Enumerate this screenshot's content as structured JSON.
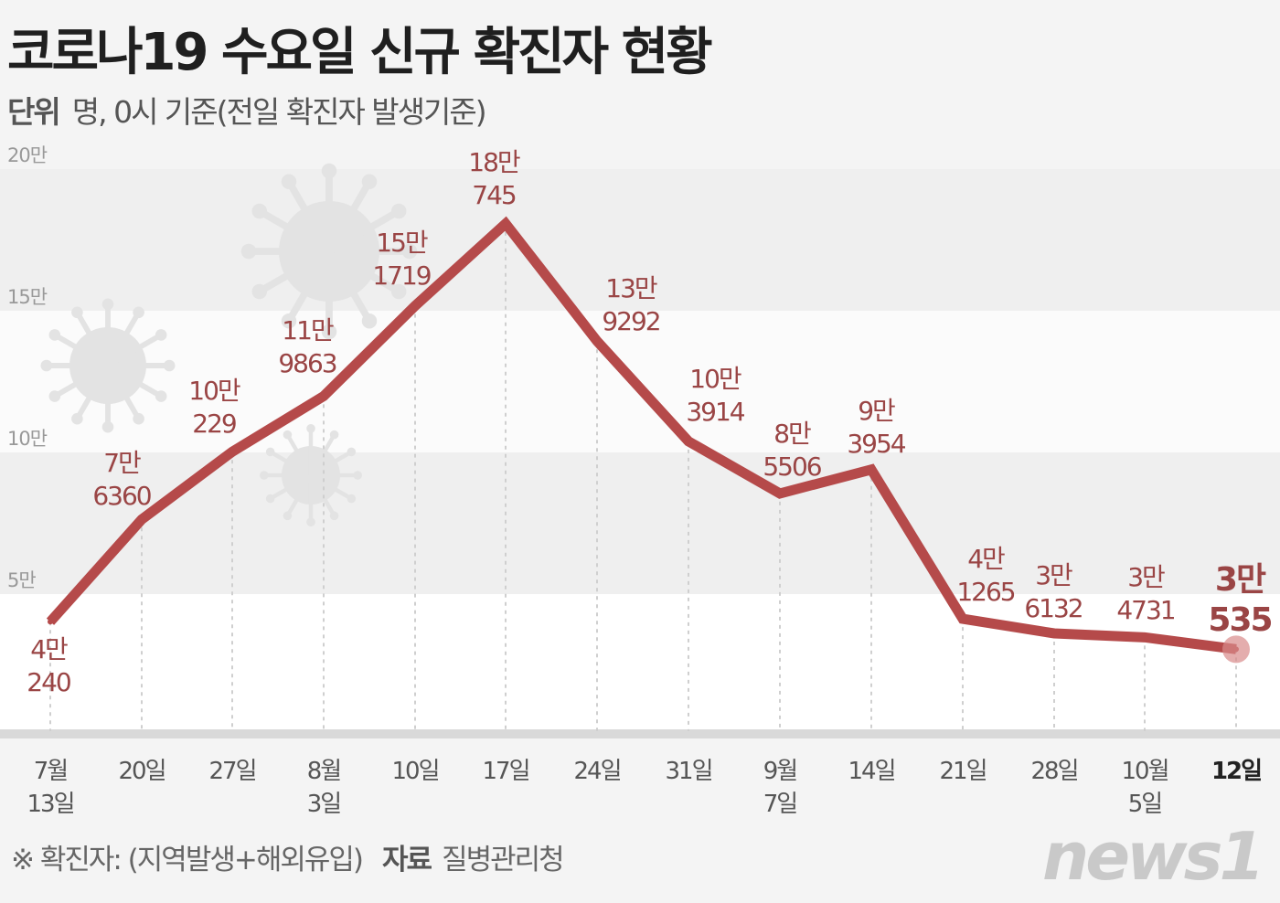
{
  "title": "코로나19 수요일 신규 확진자 현황",
  "unit_label": "단위",
  "unit_text": "명, 0시 기준(전일 확진자 발생기준)",
  "footnote": "※ 확진자: (지역발생+해외유입)",
  "source_label": "자료",
  "source": "질병관리청",
  "logo": "news1",
  "colors": {
    "line": "#b54a4a",
    "label": "#9a4545",
    "band": "#eeeeee",
    "axis_bar": "#d9d9d9"
  },
  "chart_data": {
    "type": "line",
    "title": "코로나19 수요일 신규 확진자 현황",
    "ylim": [
      0,
      200000
    ],
    "yticks": [
      {
        "value": 200000,
        "label": "20만"
      },
      {
        "value": 150000,
        "label": "15만"
      },
      {
        "value": 100000,
        "label": "10만"
      },
      {
        "value": 50000,
        "label": "5만"
      }
    ],
    "grid": "alternating bands",
    "categories": [
      [
        "7월",
        "13일"
      ],
      [
        "20일"
      ],
      [
        "27일"
      ],
      [
        "8월",
        "3일"
      ],
      [
        "10일"
      ],
      [
        "17일"
      ],
      [
        "24일"
      ],
      [
        "31일"
      ],
      [
        "9월",
        "7일"
      ],
      [
        "14일"
      ],
      [
        "21일"
      ],
      [
        "28일"
      ],
      [
        "10월",
        "5일"
      ],
      [
        "12일"
      ]
    ],
    "values": [
      40240,
      76360,
      100229,
      119863,
      151719,
      180745,
      139292,
      103914,
      85506,
      93954,
      41265,
      36132,
      34731,
      30535
    ],
    "data_labels": [
      [
        "4만",
        "240"
      ],
      [
        "7만",
        "6360"
      ],
      [
        "10만",
        "229"
      ],
      [
        "11만",
        "9863"
      ],
      [
        "15만",
        "1719"
      ],
      [
        "18만",
        "745"
      ],
      [
        "13만",
        "9292"
      ],
      [
        "10만",
        "3914"
      ],
      [
        "8만",
        "5506"
      ],
      [
        "9만",
        "3954"
      ],
      [
        "4만",
        "1265"
      ],
      [
        "3만",
        "6132"
      ],
      [
        "3만",
        "4731"
      ],
      [
        "3만",
        "535"
      ]
    ]
  }
}
